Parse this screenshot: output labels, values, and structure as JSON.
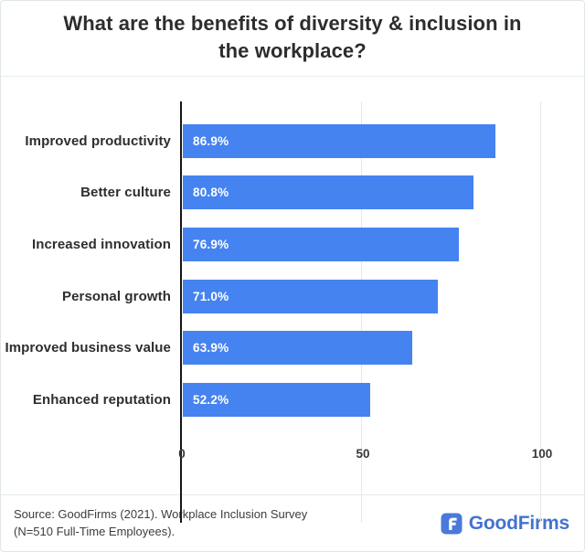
{
  "title": "What are the benefits of diversity & inclusion in the workplace?",
  "chart_data": {
    "type": "bar",
    "orientation": "horizontal",
    "title": "What are the benefits of diversity & inclusion in the workplace?",
    "categories": [
      "Improved productivity",
      "Better culture",
      "Increased innovation",
      "Personal growth",
      "Improved business value",
      "Enhanced reputation"
    ],
    "values": [
      86.9,
      80.8,
      76.9,
      71.0,
      63.9,
      52.2
    ],
    "value_labels": [
      "86.9%",
      "80.8%",
      "76.9%",
      "71.0%",
      "63.9%",
      "52.2%"
    ],
    "xlabel": "",
    "ylabel": "",
    "xlim": [
      0,
      100
    ],
    "x_ticks": [
      "0",
      "50",
      "100"
    ],
    "legend": "none",
    "grid": "vertical gridlines at 50 and 100",
    "bar_color": "#4583f0",
    "value_label_color": "#ffffff"
  },
  "footer": {
    "source_line1": "Source: GoodFirms (2021). Workplace Inclusion Survey",
    "source_line2": "(N=510 Full-Time Employees).",
    "logo_text": "GoodFirms",
    "logo_color": "#4273cf",
    "logo_icon_color": "#4a7ad9"
  }
}
